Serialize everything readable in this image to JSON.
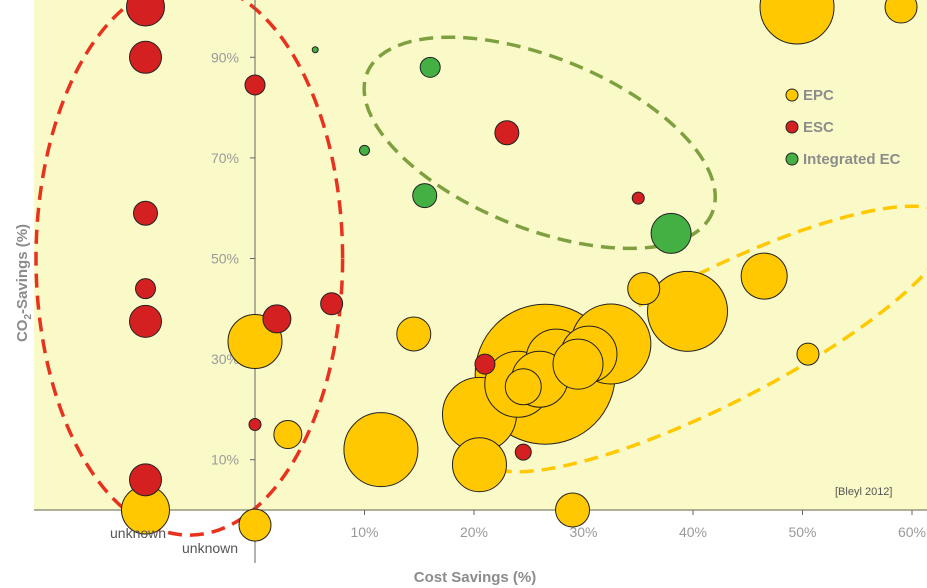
{
  "chart_data": {
    "type": "scatter",
    "xlabel": "Cost Savings (%)",
    "ylabel_main": "CO",
    "ylabel_sub": "2",
    "ylabel_rest": "-Savings (%)",
    "x_ticks": [
      "0%",
      "10%",
      "20%",
      "30%",
      "40%",
      "50%",
      "60%"
    ],
    "x_tick_values": [
      0,
      10,
      20,
      30,
      40,
      50,
      60
    ],
    "y_ticks": [
      "10%",
      "30%",
      "50%",
      "70%",
      "90%"
    ],
    "y_tick_values": [
      10,
      30,
      50,
      70,
      90
    ],
    "xlim": [
      -20,
      60
    ],
    "ylim": [
      0,
      100
    ],
    "unknown_labels": [
      "unknown",
      "unknown"
    ],
    "source_note": "[Bleyl 2012]",
    "grid": false,
    "legend_position": "top-right",
    "colors": {
      "background": "#fafac8",
      "EPC": "#ffc800",
      "ESC": "#d42020",
      "Integrated EC": "#44b044"
    },
    "legend": [
      {
        "name": "EPC",
        "color": "#ffc800"
      },
      {
        "name": "ESC",
        "color": "#d42020"
      },
      {
        "name": "Integrated EC",
        "color": "#44b044"
      }
    ],
    "clusters": [
      {
        "series": "ESC",
        "color": "#e8321e",
        "cx": -6,
        "cy": 50,
        "rx": 14,
        "ry": 55
      },
      {
        "series": "Integrated EC",
        "color": "#7fa040",
        "cx": 26,
        "cy": 73,
        "rx": 17,
        "ry": 17,
        "rot": 22
      },
      {
        "series": "EPC",
        "color": "#ffc800",
        "cx": 42,
        "cy": 34,
        "rx": 24,
        "ry": 13,
        "rot": -27
      }
    ],
    "series": [
      {
        "name": "EPC",
        "color": "#ffc800",
        "points": [
          {
            "x": -10,
            "y": 0,
            "size": 24
          },
          {
            "x": 0,
            "y": -3,
            "size": 16
          },
          {
            "x": 0,
            "y": 33.5,
            "size": 27
          },
          {
            "x": 3,
            "y": 15,
            "size": 14
          },
          {
            "x": 11.5,
            "y": 12,
            "size": 37
          },
          {
            "x": 14.5,
            "y": 35,
            "size": 17
          },
          {
            "x": 20.5,
            "y": 9,
            "size": 27
          },
          {
            "x": 20.5,
            "y": 19,
            "size": 37
          },
          {
            "x": 26.5,
            "y": 27,
            "size": 70
          },
          {
            "x": 24,
            "y": 25,
            "size": 33
          },
          {
            "x": 26,
            "y": 26,
            "size": 28
          },
          {
            "x": 27.5,
            "y": 30,
            "size": 30
          },
          {
            "x": 29.5,
            "y": 29,
            "size": 25
          },
          {
            "x": 32.5,
            "y": 33,
            "size": 40
          },
          {
            "x": 30.5,
            "y": 31,
            "size": 28
          },
          {
            "x": 24.5,
            "y": 24.5,
            "size": 18
          },
          {
            "x": 29,
            "y": 0,
            "size": 17
          },
          {
            "x": 35.5,
            "y": 44,
            "size": 16
          },
          {
            "x": 39.5,
            "y": 39.5,
            "size": 40
          },
          {
            "x": 46.5,
            "y": 46.5,
            "size": 23
          },
          {
            "x": 50.5,
            "y": 31,
            "size": 11
          },
          {
            "x": 49.5,
            "y": 100,
            "size": 37
          },
          {
            "x": 59,
            "y": 100,
            "size": 16
          }
        ]
      },
      {
        "name": "ESC",
        "color": "#d42020",
        "points": [
          {
            "x": -10,
            "y": 100,
            "size": 19
          },
          {
            "x": -10,
            "y": 90,
            "size": 16
          },
          {
            "x": -10,
            "y": 59,
            "size": 12
          },
          {
            "x": -10,
            "y": 44,
            "size": 10
          },
          {
            "x": -10,
            "y": 37.5,
            "size": 16
          },
          {
            "x": -10,
            "y": 6,
            "size": 16
          },
          {
            "x": 0,
            "y": 84.5,
            "size": 10
          },
          {
            "x": 0,
            "y": 17,
            "size": 6
          },
          {
            "x": 2,
            "y": 38,
            "size": 14
          },
          {
            "x": 7,
            "y": 41,
            "size": 11
          },
          {
            "x": 21,
            "y": 29,
            "size": 10
          },
          {
            "x": 23,
            "y": 75,
            "size": 12
          },
          {
            "x": 24.5,
            "y": 11.5,
            "size": 8
          },
          {
            "x": 35,
            "y": 62,
            "size": 6
          }
        ]
      },
      {
        "name": "Integrated EC",
        "color": "#44b044",
        "points": [
          {
            "x": 5.5,
            "y": 91.5,
            "size": 3
          },
          {
            "x": 10,
            "y": 71.5,
            "size": 5
          },
          {
            "x": 16,
            "y": 88,
            "size": 10
          },
          {
            "x": 15.5,
            "y": 62.5,
            "size": 12
          },
          {
            "x": 38,
            "y": 55,
            "size": 20
          }
        ]
      }
    ]
  }
}
